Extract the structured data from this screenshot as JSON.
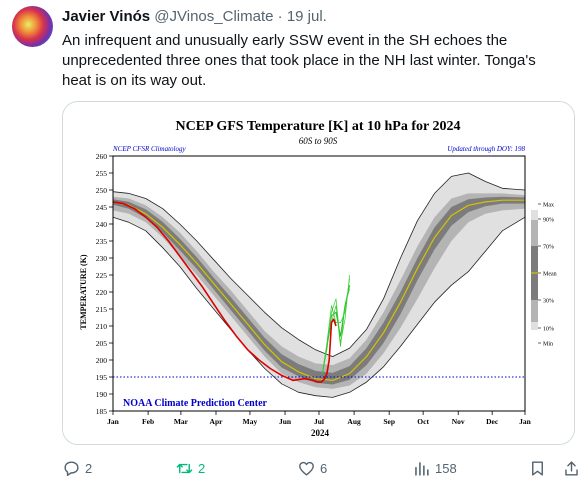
{
  "tweet": {
    "author_name": "Javier Vinós",
    "author_handle": "@JVinos_Climate",
    "separator": "·",
    "date": "19 jul.",
    "text": "An infrequent and unusually early SSW event in the SH echoes the unprecedented three ones that took place in the NH last winter. Tonga's heat is on its way out."
  },
  "actions": {
    "replies": "2",
    "reposts": "2",
    "likes": "6",
    "views": "158"
  },
  "colors": {
    "repost_active": "#00ba7c",
    "text_secondary": "#536471"
  },
  "chart_data": {
    "type": "line",
    "title": "NCEP GFS Temperature [K] at 10 hPa for 2024",
    "subtitle": "60S to 90S",
    "left_note": "NCEP CFSR Climatology",
    "right_note": "Updated through DOY: 198",
    "footer": "NOAA Climate Prediction Center",
    "xlabel": "2024",
    "ylabel": "TEMPERATURE (K)",
    "ylim": [
      185,
      260
    ],
    "yticks": [
      185,
      190,
      195,
      200,
      205,
      210,
      215,
      220,
      225,
      230,
      235,
      240,
      245,
      250,
      255,
      260
    ],
    "months": [
      "Jan",
      "Feb",
      "Mar",
      "Apr",
      "May",
      "Jun",
      "Jul",
      "Aug",
      "Sep",
      "Oct",
      "Nov",
      "Dec",
      "Jan"
    ],
    "reference_line": 195,
    "legend": [
      "Max",
      "90%",
      "70%",
      "Mean",
      "30%",
      "10%",
      "Min"
    ],
    "climatology_doy": [
      1,
      15,
      30,
      45,
      60,
      75,
      90,
      105,
      120,
      135,
      150,
      165,
      180,
      195,
      210,
      225,
      240,
      255,
      270,
      285,
      300,
      315,
      330,
      345,
      365
    ],
    "clim_mean": [
      246.5,
      245.5,
      243,
      239,
      234,
      228.5,
      222.5,
      216.5,
      210.5,
      204.5,
      199.5,
      196.5,
      194.5,
      194,
      196,
      201,
      208,
      217,
      227,
      236,
      242.5,
      245.5,
      246.5,
      247,
      247
    ],
    "clim_max": [
      249.5,
      249,
      247.5,
      244.5,
      240,
      235,
      229.5,
      224,
      219,
      214,
      209.5,
      206,
      203,
      201,
      203.5,
      209,
      218,
      230,
      241,
      249,
      254,
      255,
      252.5,
      250.5,
      250
    ],
    "clim_min": [
      242,
      240.5,
      238,
      233,
      227.5,
      221,
      215,
      209,
      203,
      197.5,
      193,
      190.5,
      189.5,
      189,
      190.5,
      193.5,
      198,
      204,
      210.5,
      217,
      222,
      226,
      232,
      238,
      242
    ],
    "clim_p90": [
      248,
      247.5,
      245.5,
      242,
      237.5,
      232,
      226,
      220.5,
      214.5,
      208.5,
      204,
      201,
      199,
      198.5,
      200.5,
      206,
      214,
      223.5,
      233.5,
      242,
      247.5,
      249,
      249,
      249,
      248.5
    ],
    "clim_p10": [
      244,
      243,
      240.5,
      236,
      230.5,
      225,
      219,
      213,
      207,
      201,
      196,
      193.5,
      192,
      191.5,
      192.5,
      196,
      202,
      209.5,
      218,
      227,
      235,
      240.5,
      243,
      244,
      244.5
    ],
    "clim_p70": [
      247.3,
      246.5,
      244.3,
      240.6,
      235.7,
      230.2,
      224.2,
      218.5,
      212.5,
      206.5,
      201.7,
      198.8,
      196.8,
      196.2,
      198.2,
      203.5,
      211,
      220,
      230,
      239,
      245,
      247.3,
      247.8,
      248,
      247.8
    ],
    "clim_p30": [
      245.7,
      244.5,
      241.8,
      237.5,
      232.3,
      226.8,
      220.8,
      214.7,
      208.7,
      202.7,
      197.8,
      195.2,
      193.3,
      192.8,
      194.2,
      198.5,
      205,
      213.5,
      223.5,
      232.5,
      239.5,
      243.5,
      245.2,
      246,
      246
    ],
    "series": [
      {
        "name": "2024",
        "x": [
          1,
          10,
          20,
          30,
          40,
          50,
          60,
          70,
          80,
          90,
          100,
          110,
          120,
          130,
          140,
          150,
          160,
          170,
          178,
          182,
          185,
          188,
          190,
          192,
          194,
          196,
          198
        ],
        "values": [
          246.5,
          246,
          244.5,
          242,
          239,
          235,
          230.5,
          226,
          221.5,
          216.5,
          211.5,
          207,
          203,
          200,
          197.5,
          195.5,
          194,
          194.5,
          194,
          193.5,
          193.5,
          194.5,
          196,
          200,
          211,
          212,
          210
        ]
      }
    ],
    "forecast_doy": [
      186,
      190,
      194,
      198,
      202,
      206,
      210
    ],
    "forecast_values": [
      196,
      204,
      213,
      214,
      207,
      216,
      222
    ]
  }
}
